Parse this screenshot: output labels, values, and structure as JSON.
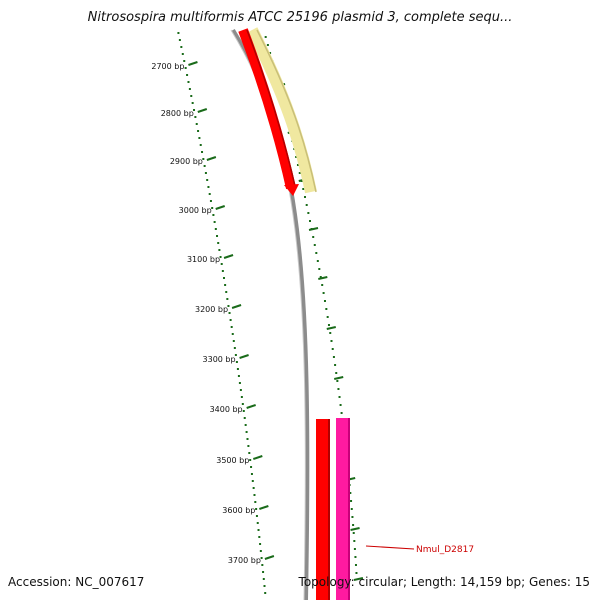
{
  "title": "Nitrosospira multiformis ATCC 25196 plasmid 3, complete sequ...",
  "accession": "Accession: NC_007617",
  "summary": "Topology: circular; Length: 14,159 bp; Genes: 15",
  "colors": {
    "backbone": "#8c8c8c",
    "ticks": "#1a6b1a",
    "gene_red": "#ff0000",
    "gene_yellow": "#f0e8a0",
    "gene_pink": "#ff1aa0",
    "label": "#cc0000"
  },
  "ruler": {
    "ticks": [
      {
        "label": "2700 bp"
      },
      {
        "label": "2800 bp"
      },
      {
        "label": "2900 bp"
      },
      {
        "label": "3000 bp"
      },
      {
        "label": "3100 bp"
      },
      {
        "label": "3200 bp"
      },
      {
        "label": "3300 bp"
      },
      {
        "label": "3400 bp"
      },
      {
        "label": "3500 bp"
      },
      {
        "label": "3600 bp"
      },
      {
        "label": "3700 bp"
      }
    ]
  },
  "genes": [
    {
      "label": "Nmul_D2817"
    }
  ]
}
